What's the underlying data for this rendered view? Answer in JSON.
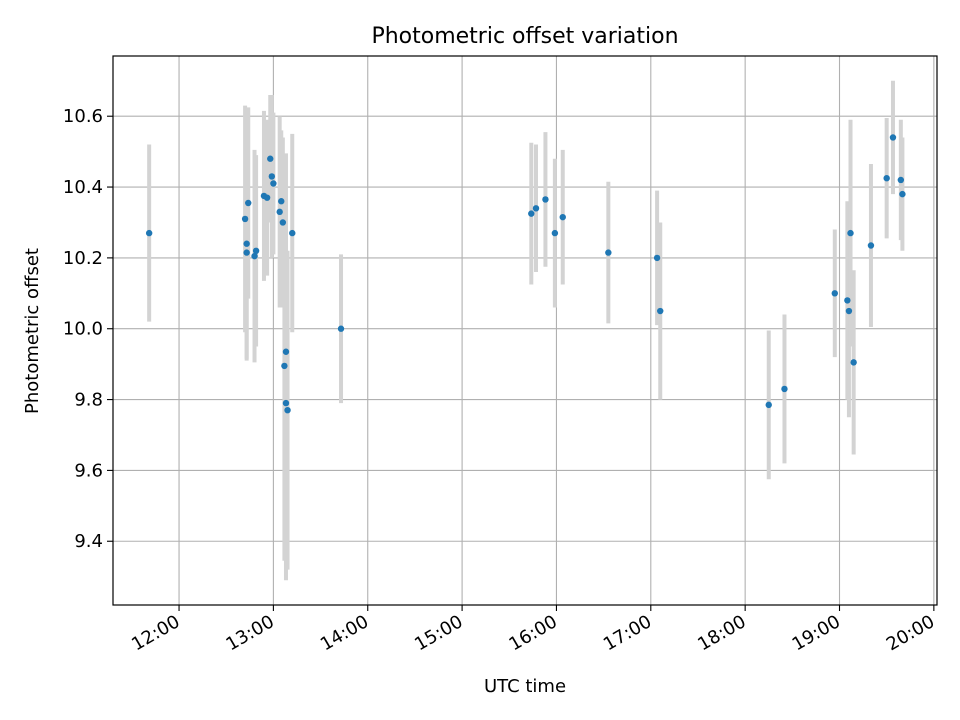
{
  "chart_data": {
    "type": "scatter",
    "title": "Photometric offset variation",
    "xlabel": "UTC time",
    "ylabel": "Photometric offset",
    "x_ticks": [
      "12:00",
      "13:00",
      "14:00",
      "15:00",
      "16:00",
      "17:00",
      "18:00",
      "19:00",
      "20:00"
    ],
    "y_ticks": [
      "9.4",
      "9.6",
      "9.8",
      "10.0",
      "10.2",
      "10.4",
      "10.6"
    ],
    "xlim": [
      "11:18",
      "20:02"
    ],
    "ylim": [
      9.22,
      10.77
    ],
    "grid": true,
    "series": [
      {
        "x": [
          "11:41",
          "12:42",
          "12:43",
          "12:43",
          "12:44",
          "12:48",
          "12:49",
          "12:54",
          "12:56",
          "12:58",
          "12:59",
          "13:00",
          "13:04",
          "13:05",
          "13:06",
          "13:07",
          "13:08",
          "13:08",
          "13:09",
          "13:12",
          "13:43",
          "15:44",
          "15:47",
          "15:53",
          "15:59",
          "16:04",
          "16:33",
          "17:04",
          "17:06",
          "18:15",
          "18:25",
          "18:57",
          "19:05",
          "19:06",
          "19:07",
          "19:09",
          "19:20",
          "19:30",
          "19:34",
          "19:39",
          "19:40"
        ],
        "y": [
          10.27,
          10.31,
          10.24,
          10.215,
          10.355,
          10.205,
          10.22,
          10.375,
          10.37,
          10.48,
          10.43,
          10.41,
          10.33,
          10.36,
          10.3,
          9.895,
          9.79,
          9.935,
          9.77,
          10.27,
          10.0,
          10.325,
          10.34,
          10.365,
          10.27,
          10.315,
          10.215,
          10.2,
          10.05,
          9.785,
          9.83,
          10.1,
          10.08,
          10.05,
          10.27,
          9.905,
          10.235,
          10.425,
          10.54,
          10.42,
          10.38
        ],
        "error": [
          0.25,
          0.32,
          0.33,
          0.3,
          0.27,
          0.3,
          0.27,
          0.24,
          0.22,
          0.18,
          0.23,
          0.2,
          0.27,
          0.2,
          0.24,
          0.55,
          0.5,
          0.56,
          0.45,
          0.28,
          0.21,
          0.2,
          0.18,
          0.19,
          0.21,
          0.19,
          0.2,
          0.19,
          0.25,
          0.21,
          0.21,
          0.18,
          0.28,
          0.3,
          0.32,
          0.26,
          0.23,
          0.17,
          0.16,
          0.17,
          0.16
        ],
        "point_color": "#1f77b4",
        "errorbar_color": "#d3d3d3"
      }
    ]
  }
}
